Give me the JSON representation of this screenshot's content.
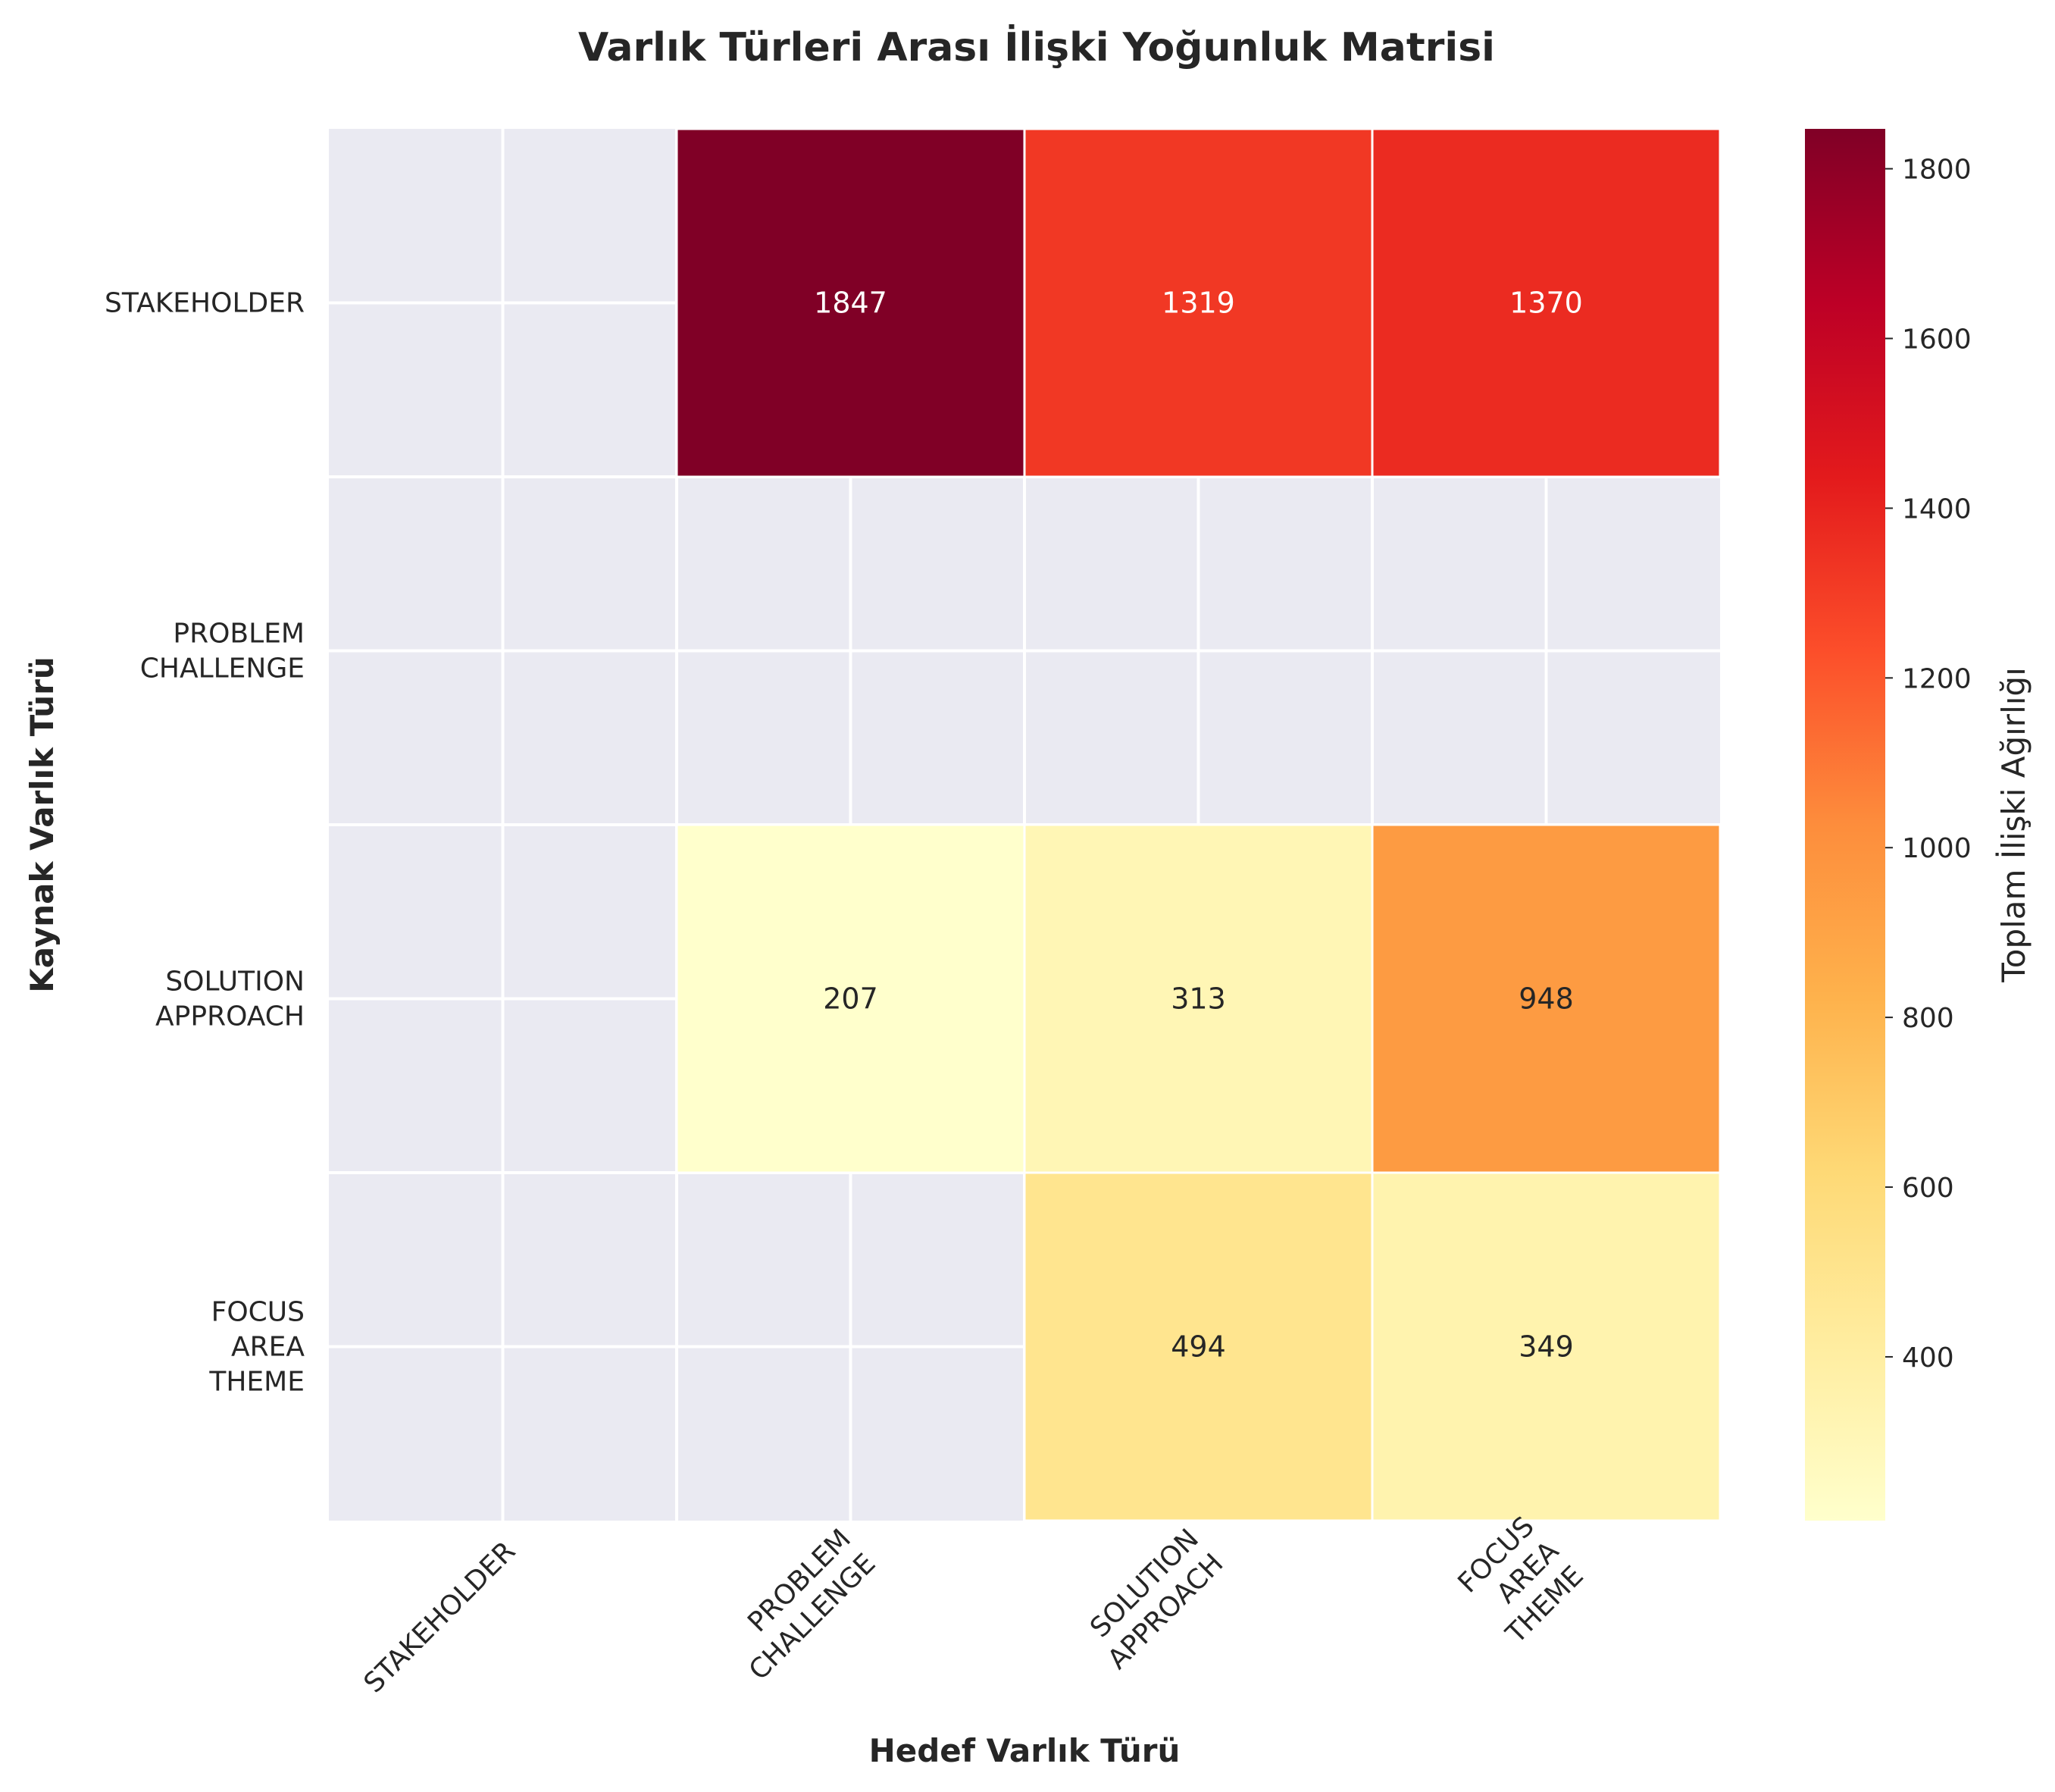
{
  "chart_data": {
    "type": "heatmap",
    "title": "Varlık Türleri Arası İlişki Yoğunluk Matrisi",
    "xlabel": "Hedef Varlık Türü",
    "ylabel": "Kaynak Varlık Türü",
    "colorbar_label": "Toplam İlişki Ağırlığı",
    "x_categories": [
      [
        "STAKEHOLDER"
      ],
      [
        "PROBLEM",
        "CHALLENGE"
      ],
      [
        "SOLUTION",
        "APPROACH"
      ],
      [
        "FOCUS",
        "AREA",
        "THEME"
      ]
    ],
    "y_categories": [
      [
        "STAKEHOLDER"
      ],
      [
        "PROBLEM",
        "CHALLENGE"
      ],
      [
        "SOLUTION",
        "APPROACH"
      ],
      [
        "FOCUS",
        "AREA",
        "THEME"
      ]
    ],
    "values": [
      [
        null,
        1847,
        1319,
        1370
      ],
      [
        null,
        null,
        null,
        null
      ],
      [
        null,
        207,
        313,
        948
      ],
      [
        null,
        null,
        494,
        349
      ]
    ],
    "colormap": "YlOrRd",
    "color_range": [
      207,
      1847
    ],
    "colorbar_ticks": [
      400,
      600,
      800,
      1000,
      1200,
      1400,
      1600,
      1800
    ],
    "missing_color": "#eaeaf2",
    "grid": true,
    "legend_position": "right"
  }
}
